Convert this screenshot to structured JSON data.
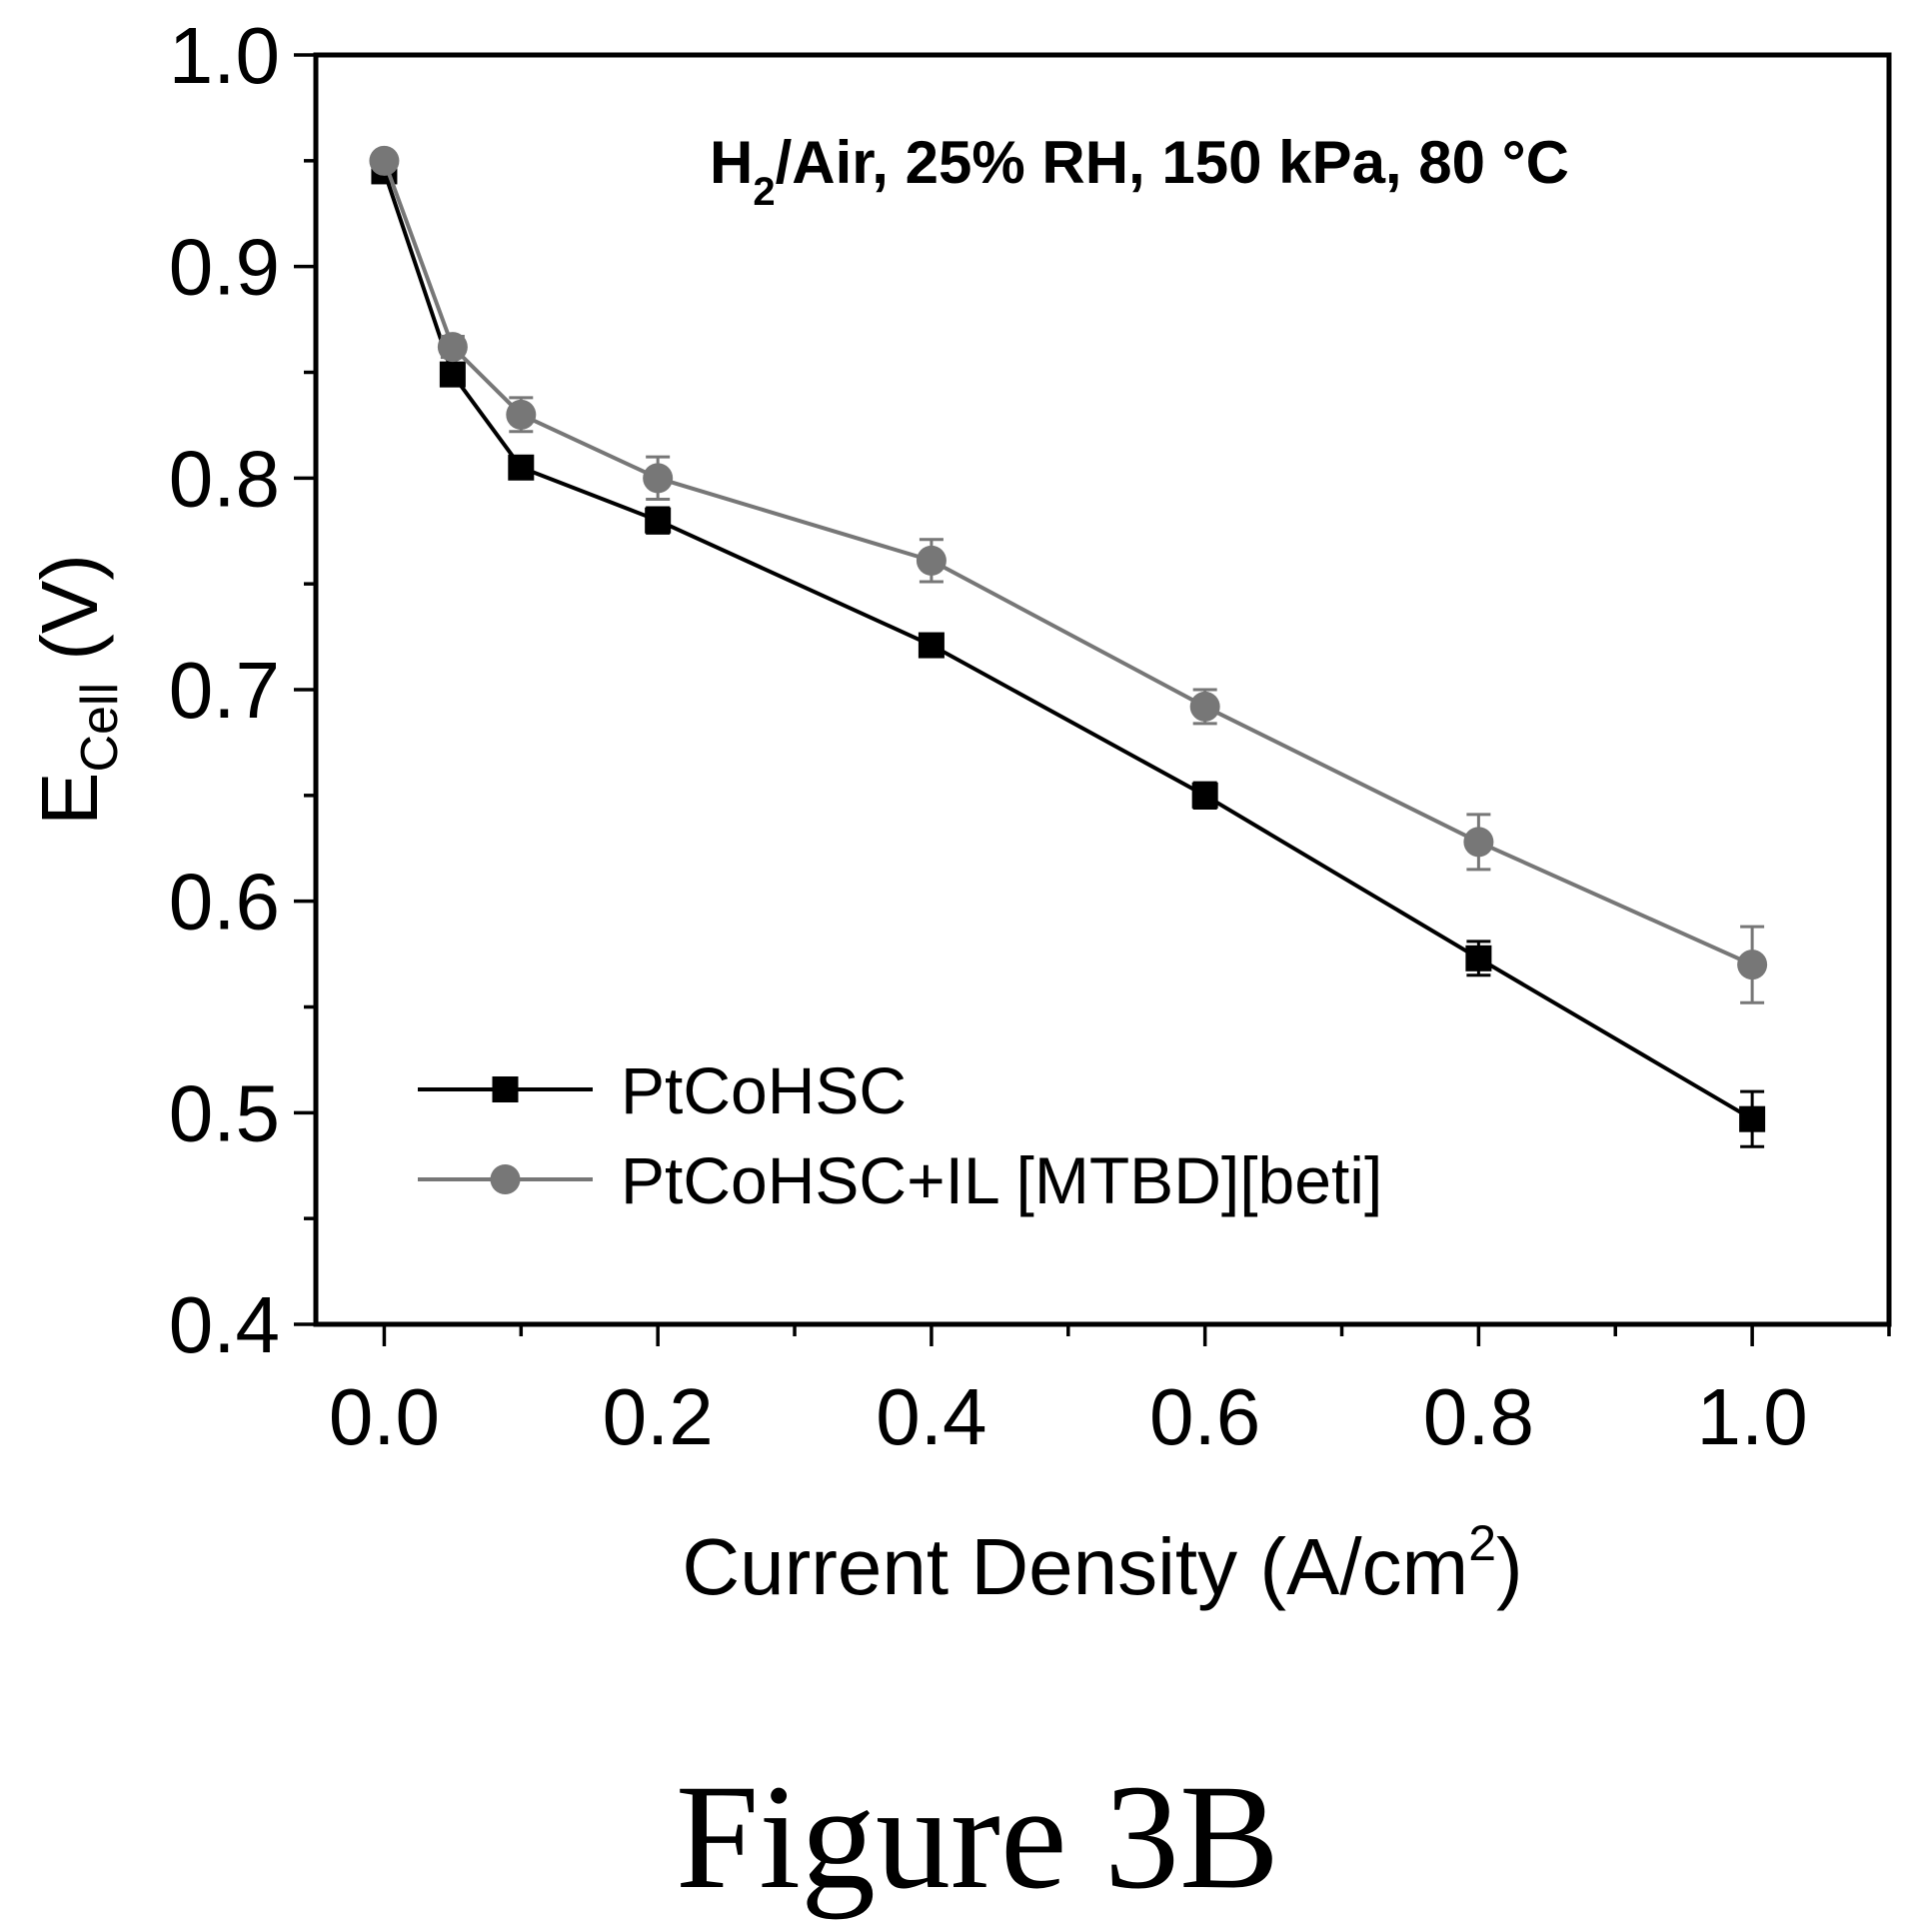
{
  "chart_data": {
    "type": "line",
    "annotation": {
      "main": "H",
      "sub": "2",
      "rest": "/Air, 25% RH, 150 kPa, 80 °C"
    },
    "xlabel": {
      "main": "Current Density (A/cm",
      "sup": "2",
      "end": ")"
    },
    "ylabel": {
      "main": "E",
      "sub": "Cell",
      "rest": " (V)"
    },
    "xlim": [
      -0.05,
      1.1
    ],
    "ylim": [
      0.4,
      1.0
    ],
    "xticks": [
      "0.0",
      "0.2",
      "0.4",
      "0.6",
      "0.8",
      "1.0"
    ],
    "yticks": [
      "0.4",
      "0.5",
      "0.6",
      "0.7",
      "0.8",
      "0.9",
      "1.0"
    ],
    "legend_position": "lower-left",
    "grid": false,
    "series": [
      {
        "name": "PtCoHSC",
        "marker": "square",
        "color": "#000000",
        "x": [
          0.0,
          0.05,
          0.1,
          0.2,
          0.4,
          0.6,
          0.8,
          1.0
        ],
        "y": [
          0.945,
          0.849,
          0.805,
          0.78,
          0.721,
          0.65,
          0.573,
          0.497
        ],
        "err": [
          0.002,
          0.004,
          0.004,
          0.006,
          0.004,
          0.006,
          0.008,
          0.013
        ]
      },
      {
        "name": "PtCoHSC+IL [MTBD][beti]",
        "marker": "circle",
        "color": "#777777",
        "x": [
          0.0,
          0.05,
          0.1,
          0.2,
          0.4,
          0.6,
          0.8,
          1.0
        ],
        "y": [
          0.95,
          0.862,
          0.83,
          0.8,
          0.761,
          0.692,
          0.628,
          0.57
        ],
        "err": [
          0.003,
          0.005,
          0.008,
          0.01,
          0.01,
          0.008,
          0.013,
          0.018
        ]
      }
    ]
  },
  "caption": "Figure 3B"
}
